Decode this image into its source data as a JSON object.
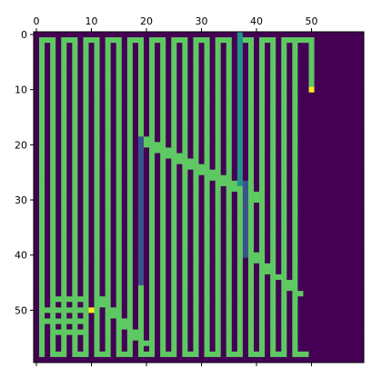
{
  "chart_data": {
    "type": "heatmap",
    "title": "",
    "xlabel": "",
    "ylabel": "",
    "x_axis_position": "top",
    "grid": false,
    "colormap": "viridis",
    "colors": {
      "0": "#440154",
      "1": "#3b528b",
      "2": "#21918c",
      "3": "#5ec962",
      "4": "#fde725"
    },
    "n_rows": 60,
    "n_cols": 60,
    "xlim": [
      -0.5,
      59.5
    ],
    "ylim": [
      59.5,
      -0.5
    ],
    "xticks": [
      0,
      10,
      20,
      30,
      40,
      50
    ],
    "yticks": [
      0,
      10,
      20,
      30,
      40,
      50
    ],
    "xtick_labels": [
      "0",
      "10",
      "20",
      "30",
      "40",
      "50"
    ],
    "ytick_labels": [
      "0",
      "10",
      "20",
      "30",
      "40",
      "50"
    ],
    "bottom_ticks": [
      0,
      10,
      20,
      30,
      40,
      50
    ],
    "markers": [
      {
        "row": 10,
        "col": 50,
        "value": 4
      },
      {
        "row": 50,
        "col": 10,
        "value": 4
      }
    ],
    "blue_segments": [
      {
        "col": 19,
        "row_start": 19,
        "row_end": 45
      },
      {
        "col": 38,
        "row_start": 27,
        "row_end": 40
      }
    ],
    "teal_segments": [
      {
        "col": 37,
        "row_start": 0,
        "row_end": 27
      }
    ]
  }
}
